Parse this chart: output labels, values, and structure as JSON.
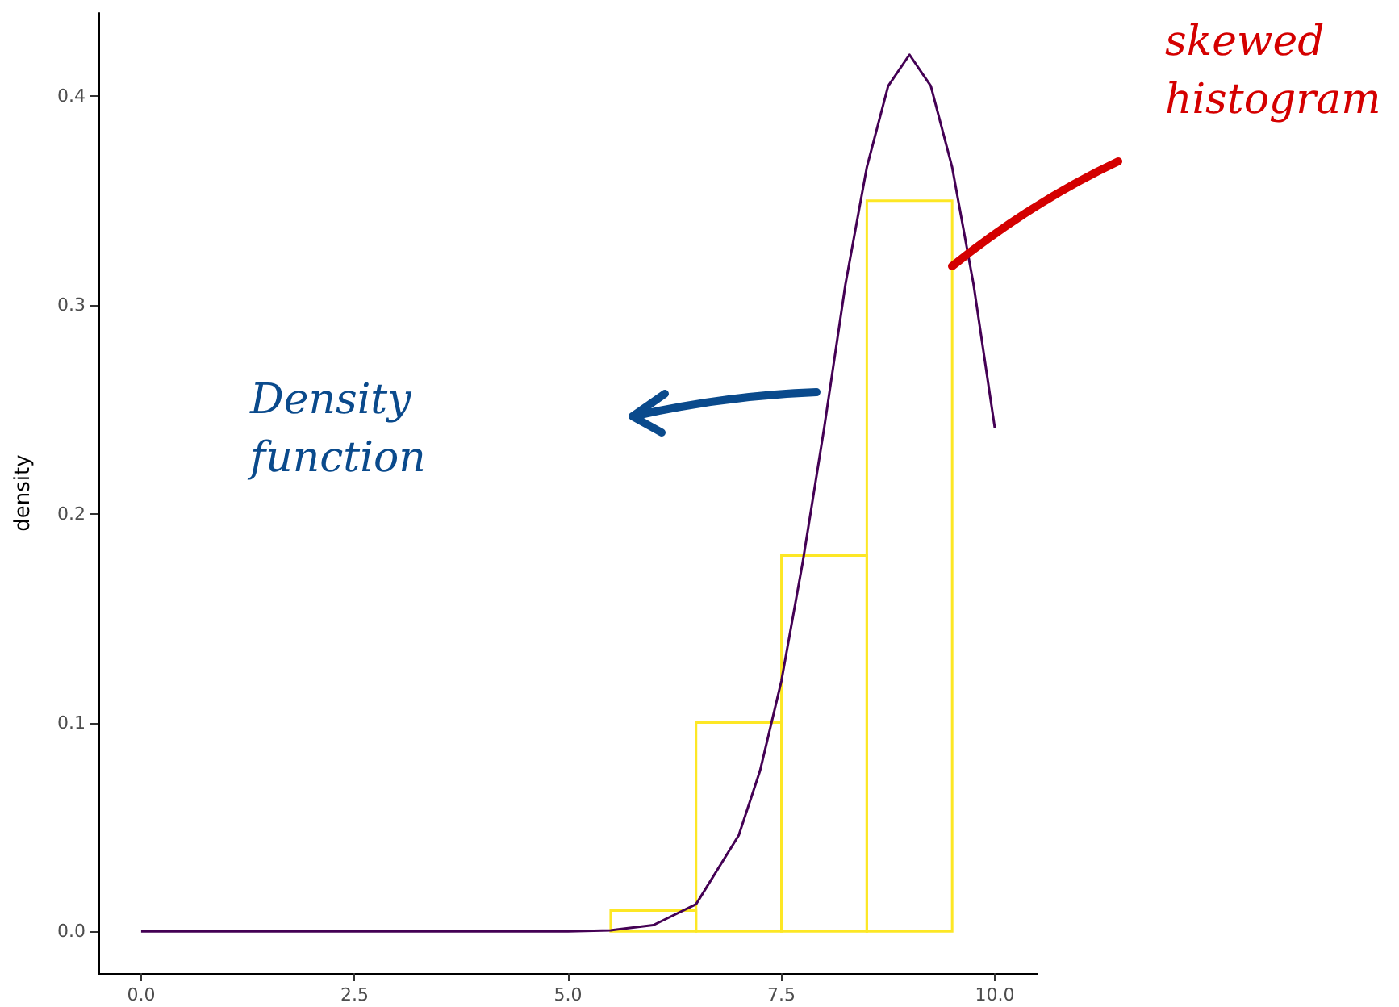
{
  "chart_data": {
    "type": "histogram",
    "ylabel": "density",
    "bins": [
      5.5,
      6.5,
      7.5,
      8.5,
      9.5
    ],
    "series": [
      {
        "color": "#fde725",
        "values": [
          0.01,
          0.1,
          0.18,
          0.35
        ]
      },
      {
        "type": "line",
        "color": "#440154",
        "x": [
          0,
          1,
          2,
          3,
          4,
          5,
          5.5,
          6,
          6.5,
          7,
          7.25,
          7.5,
          7.75,
          8,
          8.25,
          8.5,
          8.75,
          9,
          9.25,
          9.5,
          9.75,
          10
        ],
        "values": [
          0,
          0,
          0,
          0,
          0,
          0,
          0.0005,
          0.003,
          0.013,
          0.046,
          0.077,
          0.12,
          0.177,
          0.241,
          0.31,
          0.366,
          0.405,
          0.42,
          0.405,
          0.366,
          0.31,
          0.241
        ]
      }
    ],
    "xlim": [
      -0.5,
      10.5
    ],
    "xticks": [
      {
        "value": 0,
        "label": "0.0"
      },
      2.5,
      {
        "value": 5,
        "label": "5.0"
      },
      7.5,
      {
        "value": 10,
        "label": "10.0"
      }
    ],
    "ylim": [
      -0.02,
      0.44
    ],
    "yticks": [
      {
        "value": 0,
        "label": "0.0"
      },
      0.1,
      0.2,
      0.3,
      0.4
    ],
    "grid": false,
    "marker": "none",
    "line_style": "solid",
    "annotations": [
      "skewed histogram",
      "Density function"
    ]
  }
}
